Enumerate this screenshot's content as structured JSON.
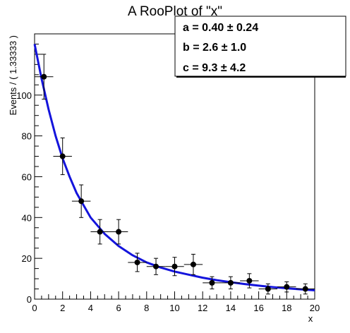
{
  "chart_data": {
    "type": "scatter",
    "title": "A RooPlot of \"x\"",
    "xlabel": "x",
    "ylabel": "Events / ( 1.33333 )",
    "xlim": [
      0,
      20
    ],
    "ylim": [
      0,
      130
    ],
    "x_ticks": [
      0,
      2,
      4,
      6,
      8,
      10,
      12,
      14,
      16,
      18,
      20
    ],
    "y_ticks": [
      0,
      20,
      40,
      60,
      80,
      100
    ],
    "grid": false,
    "bin_halfwidth": 0.666667,
    "points": [
      {
        "x": 0.667,
        "y": 109,
        "err": 11
      },
      {
        "x": 2.0,
        "y": 70,
        "err": 9
      },
      {
        "x": 3.333,
        "y": 48,
        "err": 8
      },
      {
        "x": 4.667,
        "y": 33,
        "err": 6
      },
      {
        "x": 6.0,
        "y": 33,
        "err": 6
      },
      {
        "x": 7.333,
        "y": 18,
        "err": 4.5
      },
      {
        "x": 8.667,
        "y": 16,
        "err": 4
      },
      {
        "x": 10.0,
        "y": 16,
        "err": 4.5
      },
      {
        "x": 11.333,
        "y": 17,
        "err": 5
      },
      {
        "x": 12.667,
        "y": 8,
        "err": 3
      },
      {
        "x": 14.0,
        "y": 8,
        "err": 3
      },
      {
        "x": 15.333,
        "y": 9,
        "err": 3.5
      },
      {
        "x": 16.667,
        "y": 5,
        "err": 2.5
      },
      {
        "x": 18.0,
        "y": 6,
        "err": 2.5
      },
      {
        "x": 19.333,
        "y": 5,
        "err": 2.5
      }
    ],
    "curve": {
      "color": "#1414dc",
      "x": [
        0,
        0.5,
        1,
        1.5,
        2,
        2.5,
        3,
        3.5,
        4,
        5,
        6,
        7,
        8,
        9,
        10,
        11,
        12,
        13,
        14,
        15,
        16,
        17,
        18,
        19,
        20
      ],
      "y": [
        125,
        108,
        93,
        80,
        69,
        60,
        52,
        46,
        40,
        32,
        26,
        21.5,
        18,
        15.5,
        13.5,
        12,
        10.5,
        9.3,
        8.3,
        7.4,
        6.6,
        5.9,
        5.3,
        4.8,
        4.3
      ]
    },
    "stats": [
      {
        "label": "a =  0.40 ± 0.24"
      },
      {
        "label": "b =  2.6 ± 1.0"
      },
      {
        "label": "c =  9.3 ± 4.2"
      }
    ]
  }
}
